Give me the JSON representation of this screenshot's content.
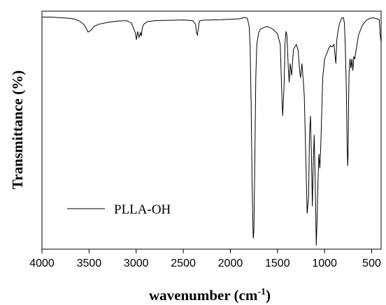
{
  "chart_data": {
    "type": "line",
    "title": "",
    "xlabel": "wavenumber (cm",
    "xlabel_sup": "-1",
    "xlabel_close": ")",
    "ylabel": "Transmittance (%)",
    "xlim": [
      4000,
      400
    ],
    "ylim": [
      0,
      100
    ],
    "x_reversed": true,
    "y_ticks_shown": false,
    "xticks": [
      4000,
      3500,
      3000,
      2500,
      2000,
      1500,
      1000,
      500
    ],
    "xtick_labels": [
      "4000",
      "3500",
      "3000",
      "2500",
      "2000",
      "1500",
      "1000",
      "500"
    ],
    "grid": false,
    "legend": {
      "placement": "bottom-left",
      "entries": [
        "PLLA-OH"
      ]
    },
    "colors": {
      "line": "#000000",
      "axes": "#000000",
      "background": "#ffffff"
    },
    "series": [
      {
        "name": "PLLA-OH",
        "x": [
          4000,
          3900,
          3800,
          3700,
          3650,
          3600,
          3550,
          3510,
          3480,
          3450,
          3400,
          3300,
          3200,
          3100,
          3050,
          3010,
          2997,
          2985,
          2970,
          2955,
          2946,
          2935,
          2920,
          2880,
          2800,
          2700,
          2600,
          2500,
          2400,
          2370,
          2360,
          2350,
          2340,
          2330,
          2300,
          2200,
          2100,
          2000,
          1900,
          1850,
          1820,
          1800,
          1790,
          1780,
          1770,
          1760,
          1757,
          1750,
          1740,
          1730,
          1720,
          1700,
          1680,
          1650,
          1620,
          1600,
          1550,
          1500,
          1470,
          1455,
          1445,
          1430,
          1420,
          1410,
          1400,
          1385,
          1375,
          1365,
          1350,
          1330,
          1300,
          1280,
          1265,
          1255,
          1240,
          1225,
          1215,
          1200,
          1185,
          1170,
          1160,
          1150,
          1140,
          1130,
          1120,
          1110,
          1100,
          1088,
          1080,
          1070,
          1060,
          1050,
          1040,
          1020,
          1000,
          980,
          960,
          940,
          920,
          900,
          880,
          870,
          860,
          840,
          820,
          800,
          790,
          780,
          770,
          760,
          755,
          750,
          745,
          740,
          730,
          720,
          710,
          700,
          690,
          680,
          660,
          640,
          600,
          560,
          520,
          480,
          450,
          420,
          410,
          400
        ],
        "y": [
          97.5,
          97.5,
          97.2,
          97.0,
          96.6,
          95.8,
          94.2,
          91.2,
          92.0,
          93.5,
          94.5,
          95.3,
          95.8,
          96.0,
          95.0,
          91.0,
          88.0,
          91.5,
          89.0,
          91.0,
          89.5,
          93.0,
          94.5,
          95.6,
          96.0,
          96.1,
          96.2,
          96.3,
          96.0,
          94.5,
          91.0,
          90.0,
          92.5,
          95.8,
          96.2,
          96.3,
          96.4,
          96.6,
          96.8,
          97.4,
          97.0,
          93.5,
          85.0,
          62.0,
          30.0,
          8.0,
          4.5,
          8.0,
          40.0,
          72.0,
          86.0,
          91.0,
          92.5,
          93.0,
          93.5,
          93.5,
          92.5,
          90.5,
          86.0,
          66.0,
          56.0,
          68.0,
          86.0,
          91.5,
          90.0,
          76.0,
          70.0,
          78.0,
          73.0,
          84.0,
          86.0,
          83.5,
          75.0,
          72.0,
          78.0,
          70.0,
          64.0,
          40.0,
          15.0,
          22.0,
          48.0,
          56.0,
          40.0,
          18.0,
          36.0,
          48.0,
          30.0,
          1.5,
          12.0,
          28.0,
          40.0,
          34.0,
          44.0,
          72.0,
          80.0,
          82.0,
          84.0,
          85.5,
          85.0,
          86.0,
          78.0,
          88.0,
          91.0,
          95.0,
          97.0,
          97.3,
          95.0,
          85.0,
          68.0,
          42.0,
          35.0,
          40.0,
          62.0,
          74.0,
          80.0,
          76.0,
          80.0,
          75.0,
          81.0,
          80.0,
          85.0,
          90.0,
          94.0,
          96.0,
          97.0,
          97.2,
          96.8,
          96.5,
          90.0,
          87.0
        ]
      }
    ]
  }
}
